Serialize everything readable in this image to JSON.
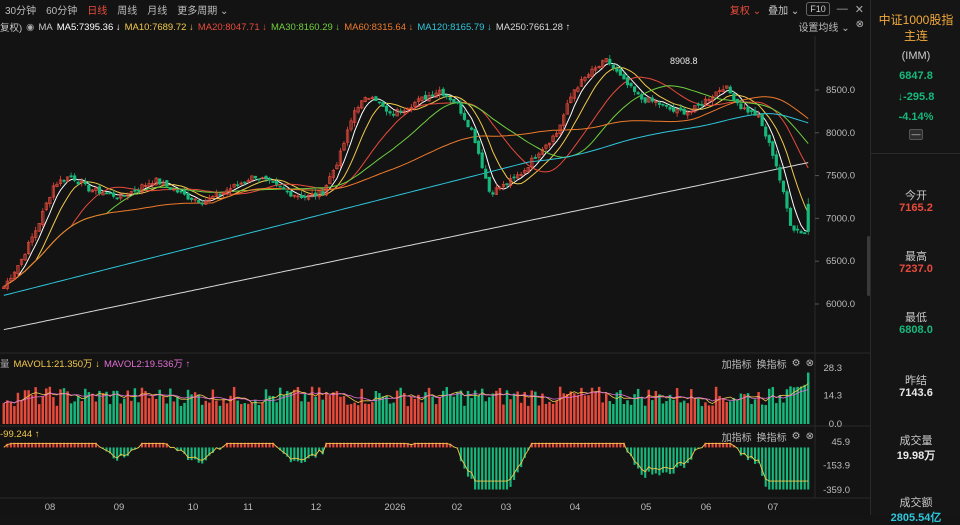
{
  "toolbar": {
    "timeframes": [
      "30分钟",
      "60分钟",
      "日线",
      "周线",
      "月线",
      "更多周期"
    ],
    "active_index": 2,
    "adjust_label": "复权",
    "overlay_label": "叠加",
    "f10_label": "F10"
  },
  "ma_bar": {
    "prefix": "复权)",
    "ma_label": "MA",
    "settings_label": "设置均线",
    "items": [
      {
        "text": "MA5:7395.36 ↓",
        "color": "#ffffff"
      },
      {
        "text": "MA10:7689.72 ↓",
        "color": "#f2c94c"
      },
      {
        "text": "MA20:8047.71 ↓",
        "color": "#e84b3c"
      },
      {
        "text": "MA30:8160.29 ↓",
        "color": "#6fcf3f"
      },
      {
        "text": "MA60:8315.64 ↓",
        "color": "#ee7a2b"
      },
      {
        "text": "MA120:8165.79 ↓",
        "color": "#2fc6dc"
      },
      {
        "text": "MA250:7661.28 ↑",
        "color": "#d8d8d8"
      }
    ],
    "peak_label": "8908.8"
  },
  "volume_bar": {
    "items": [
      {
        "text": "MAVOL1:21.350万 ↓",
        "color": "#f2c94c"
      },
      {
        "text": "MAVOL2:19.536万 ↑",
        "color": "#e26fd6"
      }
    ],
    "tools": [
      "加指标",
      "换指标"
    ]
  },
  "indicator_bar": {
    "value_text": "-99.244 ↑",
    "tools": [
      "加指标",
      "换指标"
    ]
  },
  "colors": {
    "up": "#e84b3c",
    "down": "#17b87c"
  },
  "chart_data": {
    "type": "candlestick",
    "price_axis": {
      "ticks": [
        8500.0,
        8000.0,
        7500.0,
        7000.0,
        6500.0,
        6000.0
      ]
    },
    "volume_axis": {
      "ticks": [
        28.3,
        14.3,
        0.0
      ]
    },
    "indicator_axis": {
      "ticks": [
        45.9,
        -153.9,
        -359.0
      ]
    },
    "x_axis": {
      "labels": [
        "08",
        "09",
        "10",
        "11",
        "12",
        "2026",
        "02",
        "03",
        "04",
        "05",
        "06",
        "07"
      ]
    },
    "price_anchors": [
      6200,
      6500,
      6900,
      7400,
      7500,
      7350,
      7300,
      7250,
      7350,
      7450,
      7350,
      7250,
      7200,
      7300,
      7400,
      7500,
      7400,
      7300,
      7250,
      7300,
      7700,
      8300,
      8450,
      8200,
      8300,
      8400,
      8500,
      8350,
      8000,
      7300,
      7400,
      7550,
      7800,
      8000,
      8500,
      8700,
      8850,
      8600,
      8400,
      8350,
      8250,
      8250,
      8400,
      8550,
      8300,
      8200,
      7700,
      6900,
      6808
    ],
    "last_bar": {
      "open": 7165.2,
      "high": 7237.0,
      "low": 6808.0
    }
  },
  "quote": {
    "title": "中证1000股指主连",
    "subtitle": "(IMM)",
    "price": "6847.8",
    "change": "↓-295.8",
    "pct": "-4.14%",
    "collapse_btn": "—",
    "fields": [
      {
        "label": "今开",
        "value": "7165.2",
        "color": "#e84b3c"
      },
      {
        "label": "最高",
        "value": "7237.0",
        "color": "#e84b3c"
      },
      {
        "label": "最低",
        "value": "6808.0",
        "color": "#17b87c"
      },
      {
        "label": "昨结",
        "value": "7143.6",
        "color": "#e8e8e8"
      },
      {
        "label": "成交量",
        "value": "19.98万",
        "color": "#e8e8e8"
      },
      {
        "label": "成交额",
        "value": "2805.54亿",
        "color": "#2fc6dc"
      }
    ]
  }
}
